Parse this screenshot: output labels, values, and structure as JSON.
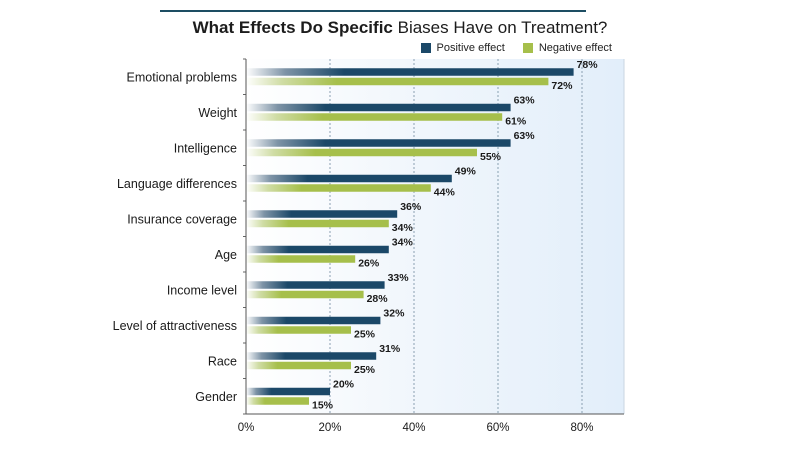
{
  "title": {
    "bold": "What Effects Do Specific",
    "rest": "Biases Have on Treatment?"
  },
  "colors": {
    "positive": "#1b4868",
    "negative": "#a6bf4b",
    "plot_bg": "#eaf3fc",
    "grid": "#8aa0b2"
  },
  "chart_data": {
    "type": "bar",
    "orientation": "horizontal",
    "title": "What Effects Do Specific Biases Have on Treatment?",
    "categories": [
      "Emotional problems",
      "Weight",
      "Intelligence",
      "Language differences",
      "Insurance coverage",
      "Age",
      "Income level",
      "Level of attractiveness",
      "Race",
      "Gender"
    ],
    "series": [
      {
        "name": "Positive effect",
        "values": [
          78,
          63,
          63,
          49,
          36,
          34,
          33,
          32,
          31,
          20
        ]
      },
      {
        "name": "Negative effect",
        "values": [
          72,
          61,
          55,
          44,
          34,
          26,
          28,
          25,
          25,
          15
        ]
      }
    ],
    "xlim": [
      0,
      90
    ],
    "ticks": [
      0,
      20,
      40,
      60,
      80
    ],
    "tick_suffix": "%",
    "grid": true,
    "legend_position": "top-right"
  }
}
